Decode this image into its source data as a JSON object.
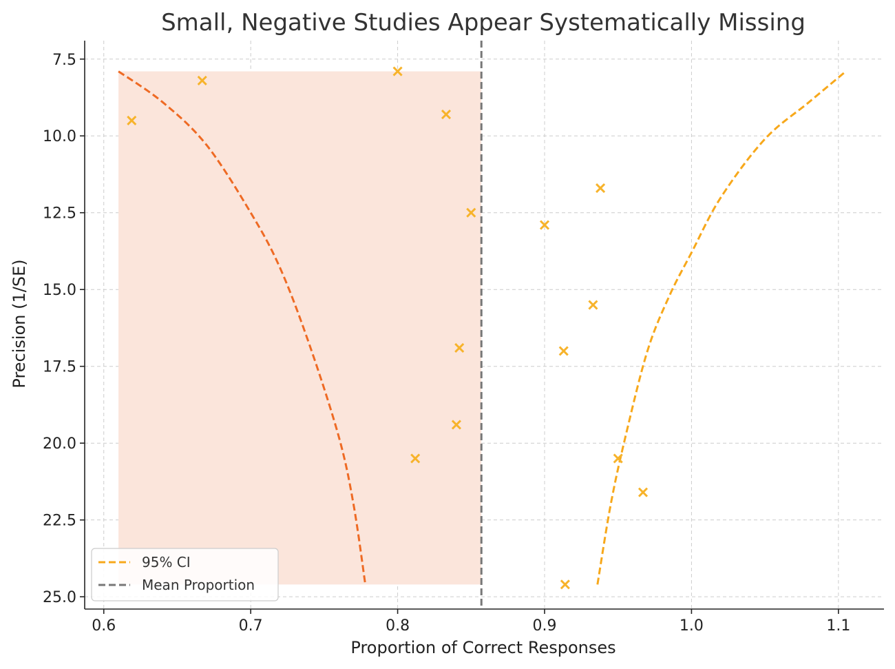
{
  "chart_data": {
    "type": "scatter",
    "title": "Small, Negative Studies Appear Systematically Missing",
    "xlabel": "Proportion of Correct Responses",
    "ylabel": "Precision (1/SE)",
    "xlim": [
      0.587,
      1.131
    ],
    "ylim": [
      25.4,
      6.9
    ],
    "y_inverted": true,
    "grid": true,
    "x_ticks": [
      0.6,
      0.7,
      0.8,
      0.9,
      1.0,
      1.1
    ],
    "x_tick_labels": [
      "0.6",
      "0.7",
      "0.8",
      "0.9",
      "1.0",
      "1.1"
    ],
    "y_ticks": [
      7.5,
      10.0,
      12.5,
      15.0,
      17.5,
      20.0,
      22.5,
      25.0
    ],
    "y_tick_labels": [
      "7.5",
      "10.0",
      "12.5",
      "15.0",
      "17.5",
      "20.0",
      "22.5",
      "25.0"
    ],
    "points": [
      {
        "x": 0.619,
        "y": 9.5
      },
      {
        "x": 0.667,
        "y": 8.2
      },
      {
        "x": 0.8,
        "y": 7.9
      },
      {
        "x": 0.833,
        "y": 9.3
      },
      {
        "x": 0.85,
        "y": 12.5
      },
      {
        "x": 0.842,
        "y": 16.9
      },
      {
        "x": 0.84,
        "y": 19.4
      },
      {
        "x": 0.812,
        "y": 20.5
      },
      {
        "x": 0.9,
        "y": 12.9
      },
      {
        "x": 0.938,
        "y": 11.7
      },
      {
        "x": 0.933,
        "y": 15.5
      },
      {
        "x": 0.913,
        "y": 17.0
      },
      {
        "x": 0.95,
        "y": 20.5
      },
      {
        "x": 0.967,
        "y": 21.6
      },
      {
        "x": 0.914,
        "y": 24.6
      }
    ],
    "ci_left": {
      "x": [
        0.61,
        0.64,
        0.67,
        0.7,
        0.72,
        0.74,
        0.76,
        0.77,
        0.778
      ],
      "y": [
        7.9,
        8.9,
        10.3,
        12.5,
        14.3,
        16.8,
        19.8,
        22.0,
        24.6
      ]
    },
    "ci_right": {
      "x": [
        0.936,
        0.945,
        0.955,
        0.97,
        0.985,
        1.0,
        1.02,
        1.05,
        1.08,
        1.105
      ],
      "y": [
        24.6,
        22.0,
        19.8,
        17.0,
        15.2,
        13.8,
        12.0,
        10.1,
        8.9,
        7.9
      ]
    },
    "mean_proportion": 0.857,
    "shaded_region": {
      "x_from": 0.61,
      "x_to": 0.857,
      "y_from": 7.9,
      "y_to": 24.6
    },
    "colors": {
      "points": "#f7b32b",
      "ci_left": "#ee6a24",
      "ci_right": "#f7a81b",
      "mean_line": "#777777",
      "shade": "#fbe5db",
      "grid": "#cccccc",
      "axis": "#222222",
      "title": "#333333"
    },
    "legend": {
      "placement": "lower-left",
      "entries": [
        {
          "label": "95% CI",
          "color": "#f7a81b",
          "style": "dashed"
        },
        {
          "label": "Mean Proportion",
          "color": "#777777",
          "style": "dashed"
        }
      ]
    }
  }
}
